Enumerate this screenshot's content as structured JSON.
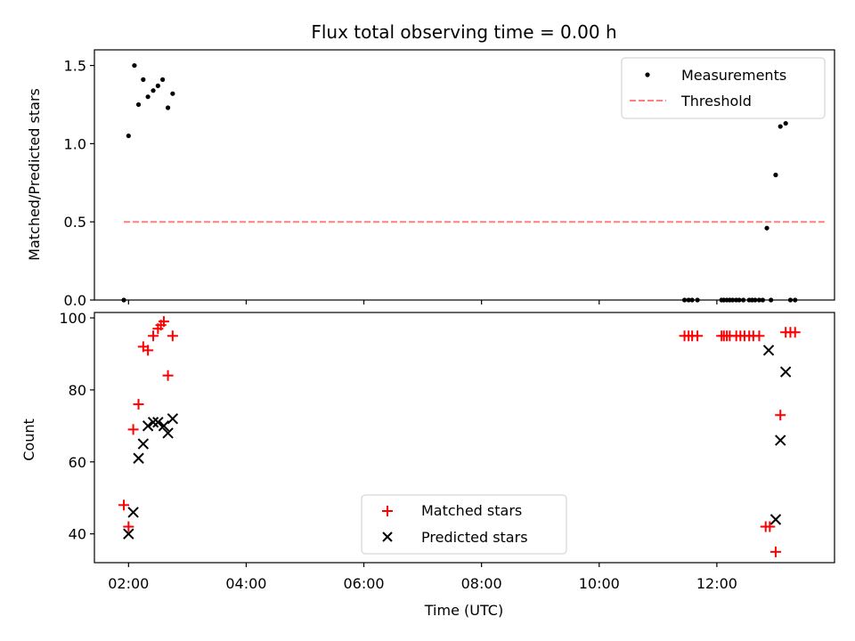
{
  "chart_data": {
    "title": "Flux total observing time = 0.00 h",
    "xlabel": "Time (UTC)",
    "xticks": [
      "02:00",
      "04:00",
      "06:00",
      "08:00",
      "10:00",
      "12:00"
    ],
    "xlim": [
      1.42,
      14.0
    ],
    "panels": [
      {
        "type": "scatter",
        "ylabel": "Matched/Predicted stars",
        "ylim": [
          0,
          1.6
        ],
        "yticks": [
          "0.0",
          "0.5",
          "1.0",
          "1.5"
        ],
        "legend_position": "top-right",
        "series": [
          {
            "name": "Measurements",
            "marker": "dot",
            "color": "#000000",
            "x": [
              1.92,
              2.0,
              2.1,
              2.17,
              2.25,
              2.33,
              2.42,
              2.5,
              2.58,
              2.67,
              2.75,
              11.45,
              11.52,
              11.58,
              11.67,
              12.08,
              12.12,
              12.17,
              12.22,
              12.27,
              12.33,
              12.38,
              12.45,
              12.55,
              12.6,
              12.65,
              12.72,
              12.78,
              12.85,
              12.92,
              13.0,
              13.08,
              13.17,
              13.25,
              13.33
            ],
            "y": [
              0.0,
              1.05,
              1.5,
              1.25,
              1.41,
              1.3,
              1.34,
              1.37,
              1.41,
              1.23,
              1.32,
              0.0,
              0.0,
              0.0,
              0.0,
              0.0,
              0.0,
              0.0,
              0.0,
              0.0,
              0.0,
              0.0,
              0.0,
              0.0,
              0.0,
              0.0,
              0.0,
              0.0,
              0.46,
              0.0,
              0.8,
              1.11,
              1.13,
              0.0,
              0.0
            ]
          },
          {
            "name": "Threshold",
            "type": "line",
            "style": "dashed",
            "color": "#ff7f7f",
            "x": [
              1.92,
              13.83
            ],
            "y": [
              0.5,
              0.5
            ]
          }
        ]
      },
      {
        "type": "scatter",
        "ylabel": "Count",
        "ylim": [
          32,
          101.5
        ],
        "yticks": [
          "40",
          "60",
          "80",
          "100"
        ],
        "legend_position": "bottom-center",
        "series": [
          {
            "name": "Matched stars",
            "marker": "plus",
            "color": "#ff0000",
            "x": [
              1.92,
              2.0,
              2.08,
              2.17,
              2.25,
              2.33,
              2.42,
              2.5,
              2.55,
              2.6,
              2.67,
              2.75,
              11.45,
              11.52,
              11.58,
              11.67,
              12.08,
              12.12,
              12.17,
              12.22,
              12.33,
              12.4,
              12.47,
              12.55,
              12.62,
              12.72,
              12.83,
              12.9,
              13.0,
              13.08,
              13.17,
              13.25,
              13.33
            ],
            "y": [
              48,
              42,
              69,
              76,
              92,
              91,
              95,
              97,
              98,
              99,
              84,
              95,
              95,
              95,
              95,
              95,
              95,
              95,
              95,
              95,
              95,
              95,
              95,
              95,
              95,
              95,
              42,
              42,
              35,
              73,
              96,
              96,
              96
            ]
          },
          {
            "name": "Predicted stars",
            "marker": "x",
            "color": "#000000",
            "x": [
              2.0,
              2.08,
              2.17,
              2.25,
              2.33,
              2.42,
              2.5,
              2.6,
              2.67,
              2.75,
              12.88,
              13.0,
              13.08,
              13.17
            ],
            "y": [
              40,
              46,
              61,
              65,
              70,
              71,
              71,
              70,
              68,
              72,
              91,
              44,
              66,
              85
            ]
          }
        ]
      }
    ]
  }
}
